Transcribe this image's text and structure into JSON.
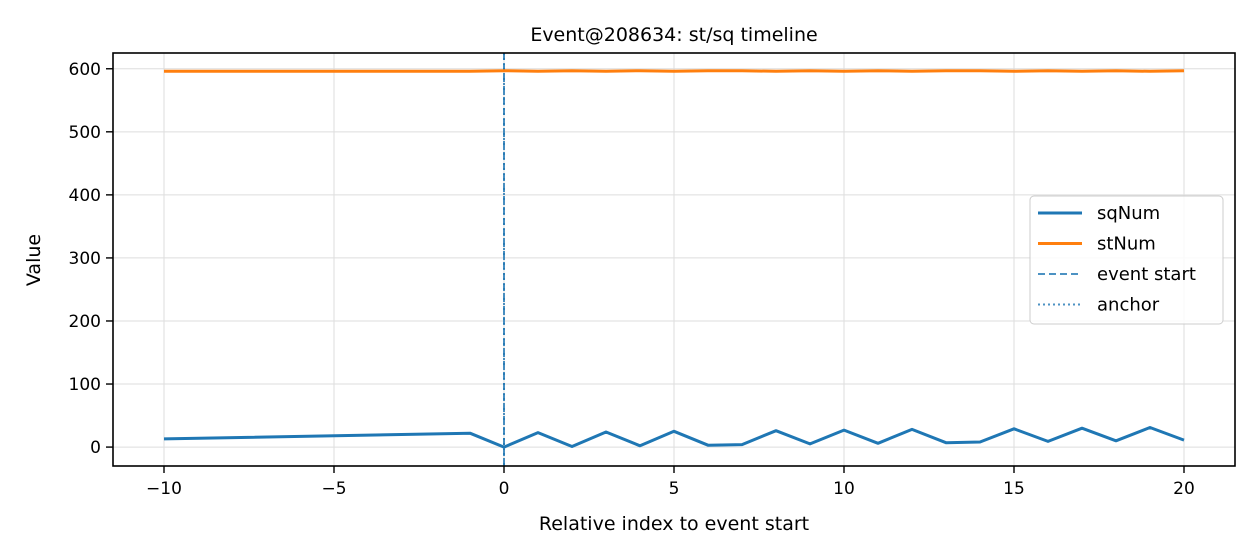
{
  "chart_data": {
    "type": "line",
    "title": "Event@208634: st/sq timeline",
    "xlabel": "Relative index to event start",
    "ylabel": "Value",
    "xlim": [
      -11.5,
      21.5
    ],
    "ylim": [
      -30,
      625
    ],
    "xticks": [
      -10,
      -5,
      0,
      5,
      10,
      15,
      20
    ],
    "xtick_labels": [
      "−10",
      "−5",
      "0",
      "5",
      "10",
      "15",
      "20"
    ],
    "yticks": [
      0,
      100,
      200,
      300,
      400,
      500,
      600
    ],
    "ytick_labels": [
      "0",
      "100",
      "200",
      "300",
      "400",
      "500",
      "600"
    ],
    "grid": true,
    "legend_position": "center-right",
    "series": [
      {
        "name": "sqNum",
        "color": "#1f77b4",
        "style": "solid",
        "x": [
          -10,
          -1,
          0,
          1,
          2,
          3,
          4,
          5,
          6,
          7,
          8,
          9,
          10,
          11,
          12,
          13,
          14,
          15,
          16,
          17,
          18,
          19,
          20
        ],
        "y": [
          13,
          22,
          0,
          23,
          1,
          24,
          2,
          25,
          3,
          4,
          26,
          5,
          27,
          6,
          28,
          7,
          8,
          29,
          9,
          30,
          10,
          31,
          11
        ]
      },
      {
        "name": "stNum",
        "color": "#ff7f0e",
        "style": "solid",
        "x": [
          -10,
          -1,
          0,
          1,
          2,
          3,
          4,
          5,
          6,
          7,
          8,
          9,
          10,
          11,
          12,
          13,
          14,
          15,
          16,
          17,
          18,
          19,
          20
        ],
        "y": [
          596,
          596,
          597,
          596,
          597,
          596,
          597,
          596,
          597,
          597,
          596,
          597,
          596,
          597,
          596,
          597,
          597,
          596,
          597,
          596,
          597,
          596,
          597
        ]
      }
    ],
    "vlines": [
      {
        "name": "event start",
        "x": 0,
        "color": "#1f77b4",
        "style": "dashed"
      },
      {
        "name": "anchor",
        "x": 0,
        "color": "#1f77b4",
        "style": "dotted"
      }
    ]
  }
}
